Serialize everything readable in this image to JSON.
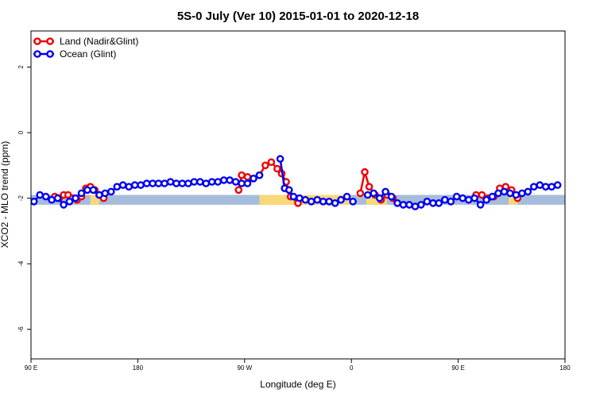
{
  "chart_data": {
    "type": "line",
    "title": "5S-0 July (Ver 10)   2015-01-01 to 2020-12-18",
    "xlabel": "Longitude (deg E)",
    "ylabel": "XCO2 - MLO trend (ppm)",
    "xlim": [
      90,
      450
    ],
    "ylim": [
      -6.9,
      3.1
    ],
    "x_ticks": [
      {
        "value": 90,
        "label": "90 E"
      },
      {
        "value": 162,
        "label": "180"
      },
      {
        "value": 234,
        "label": "90 W"
      },
      {
        "value": 306,
        "label": "0"
      },
      {
        "value": 378,
        "label": "90 E"
      },
      {
        "value": 450,
        "label": "180"
      }
    ],
    "y_ticks": [
      {
        "value": 2,
        "label": "2"
      },
      {
        "value": 0,
        "label": "0"
      },
      {
        "value": -2,
        "label": "-2"
      },
      {
        "value": -4,
        "label": "-4"
      },
      {
        "value": -6,
        "label": "-6"
      }
    ],
    "legend_position": "top-left",
    "surface_band": {
      "y_range": [
        -2.2,
        -1.9
      ],
      "ocean_color": "#a6bcdc",
      "land_color": "#f9d87a",
      "land_segments": [
        [
          130,
          136
        ],
        [
          244,
          306
        ],
        [
          316,
          330
        ],
        [
          412,
          418
        ]
      ]
    },
    "series": [
      {
        "name": "Land (Nadir&Glint)",
        "color": "#ee0000",
        "segments": [
          [
            [
              106,
              -1.95
            ],
            [
              109,
              -2.0
            ],
            [
              112,
              -1.9
            ],
            [
              115,
              -1.9
            ],
            [
              118,
              -2.0
            ],
            [
              121,
              -2.05
            ],
            [
              124,
              -1.95
            ],
            [
              127,
              -1.7
            ],
            [
              130,
              -1.65
            ],
            [
              133,
              -1.75
            ],
            [
              136,
              -1.9
            ],
            [
              139,
              -2.0
            ]
          ],
          [
            [
              230,
              -1.75
            ],
            [
              232,
              -1.3
            ],
            [
              236,
              -1.35
            ],
            [
              240,
              -1.4
            ],
            [
              244,
              -1.3
            ],
            [
              248,
              -1.0
            ],
            [
              252,
              -0.9
            ],
            [
              256,
              -1.1
            ],
            [
              259,
              -1.25
            ],
            [
              262,
              -1.5
            ],
            [
              265,
              -1.95
            ],
            [
              270,
              -2.15
            ]
          ],
          [
            [
              312,
              -1.85
            ],
            [
              315,
              -1.2
            ],
            [
              318,
              -1.65
            ],
            [
              322,
              -1.9
            ],
            [
              326,
              -2.05
            ],
            [
              330,
              -1.9
            ],
            [
              334,
              -2.0
            ]
          ],
          [
            [
              390,
              -1.9
            ],
            [
              394,
              -1.9
            ],
            [
              398,
              -2.0
            ],
            [
              402,
              -1.95
            ],
            [
              406,
              -1.7
            ],
            [
              410,
              -1.65
            ],
            [
              414,
              -1.75
            ],
            [
              418,
              -2.0
            ]
          ]
        ]
      },
      {
        "name": "Ocean (Glint)",
        "color": "#0000ee",
        "segments": [
          [
            [
              92,
              -2.1
            ],
            [
              96,
              -1.9
            ],
            [
              100,
              -1.95
            ],
            [
              104,
              -2.05
            ],
            [
              108,
              -2.0
            ],
            [
              112,
              -2.2
            ],
            [
              116,
              -2.1
            ],
            [
              120,
              -2.0
            ],
            [
              124,
              -1.85
            ],
            [
              128,
              -1.75
            ],
            [
              132,
              -1.75
            ],
            [
              136,
              -1.9
            ],
            [
              140,
              -1.85
            ],
            [
              144,
              -1.8
            ],
            [
              148,
              -1.65
            ],
            [
              152,
              -1.6
            ],
            [
              156,
              -1.65
            ],
            [
              160,
              -1.6
            ],
            [
              164,
              -1.6
            ],
            [
              168,
              -1.55
            ],
            [
              172,
              -1.55
            ],
            [
              176,
              -1.55
            ],
            [
              180,
              -1.55
            ],
            [
              184,
              -1.5
            ],
            [
              188,
              -1.55
            ],
            [
              192,
              -1.55
            ],
            [
              196,
              -1.55
            ],
            [
              200,
              -1.5
            ],
            [
              204,
              -1.5
            ],
            [
              208,
              -1.55
            ],
            [
              212,
              -1.5
            ],
            [
              216,
              -1.5
            ],
            [
              220,
              -1.45
            ],
            [
              224,
              -1.45
            ],
            [
              228,
              -1.5
            ],
            [
              232,
              -1.55
            ],
            [
              236,
              -1.55
            ],
            [
              240,
              -1.4
            ],
            [
              244,
              -1.3
            ]
          ],
          [
            [
              258,
              -0.8
            ],
            [
              261,
              -1.7
            ],
            [
              264,
              -1.75
            ],
            [
              267,
              -1.95
            ],
            [
              271,
              -2.0
            ],
            [
              275,
              -2.05
            ],
            [
              279,
              -2.1
            ],
            [
              283,
              -2.05
            ],
            [
              287,
              -2.1
            ],
            [
              291,
              -2.1
            ],
            [
              295,
              -2.15
            ],
            [
              299,
              -2.05
            ],
            [
              303,
              -1.95
            ],
            [
              307,
              -2.1
            ]
          ],
          [
            [
              317,
              -1.9
            ],
            [
              321,
              -1.85
            ],
            [
              325,
              -2.0
            ],
            [
              329,
              -1.8
            ],
            [
              333,
              -1.95
            ],
            [
              337,
              -2.15
            ],
            [
              341,
              -2.2
            ],
            [
              345,
              -2.2
            ],
            [
              349,
              -2.25
            ],
            [
              353,
              -2.2
            ],
            [
              357,
              -2.1
            ],
            [
              361,
              -2.15
            ],
            [
              365,
              -2.15
            ],
            [
              369,
              -2.05
            ],
            [
              373,
              -2.1
            ],
            [
              377,
              -1.95
            ],
            [
              381,
              -2.0
            ],
            [
              385,
              -2.05
            ],
            [
              389,
              -2.0
            ],
            [
              393,
              -2.2
            ],
            [
              397,
              -2.05
            ],
            [
              401,
              -1.95
            ],
            [
              405,
              -1.85
            ],
            [
              409,
              -1.8
            ],
            [
              413,
              -1.85
            ],
            [
              417,
              -1.9
            ],
            [
              421,
              -1.85
            ],
            [
              425,
              -1.8
            ],
            [
              429,
              -1.65
            ],
            [
              433,
              -1.6
            ],
            [
              437,
              -1.65
            ],
            [
              441,
              -1.65
            ],
            [
              445,
              -1.6
            ]
          ]
        ]
      }
    ]
  }
}
